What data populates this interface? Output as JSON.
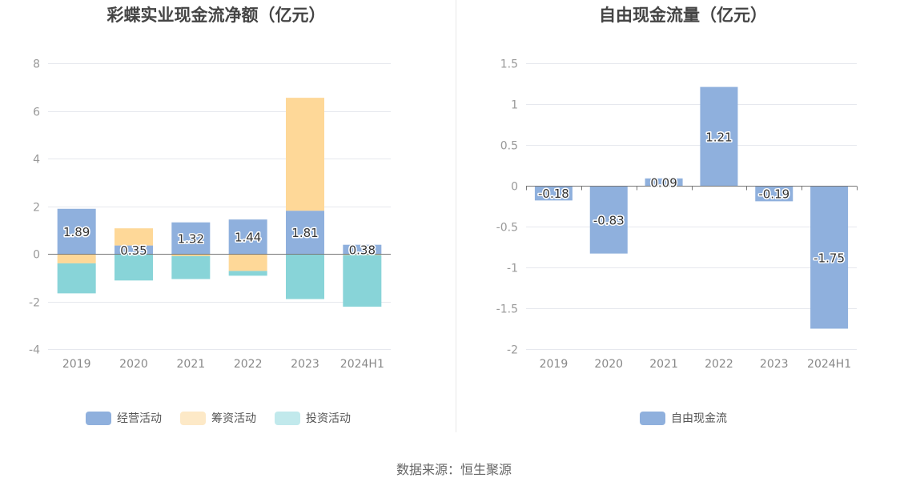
{
  "chart_data": [
    {
      "type": "bar",
      "stacked": true,
      "title": "彩蝶实业现金流净额（亿元）",
      "categories": [
        "2019",
        "2020",
        "2021",
        "2022",
        "2023",
        "2024H1"
      ],
      "ylim": [
        -4,
        8
      ],
      "yticks": [
        "8",
        "6",
        "4",
        "2",
        "0",
        "-2",
        "-4"
      ],
      "ytick_values": [
        8,
        6,
        4,
        2,
        0,
        -2,
        -4
      ],
      "series": [
        {
          "name": "经营活动",
          "color": "#8fb0dd",
          "legend_color": "#8fb0dd",
          "values": [
            1.89,
            0.35,
            1.32,
            1.44,
            1.81,
            0.38
          ],
          "labels": [
            "1.89",
            "0.35",
            "1.32",
            "1.44",
            "1.81",
            "0.38"
          ]
        },
        {
          "name": "筹资活动",
          "color": "#fed898",
          "legend_color": "#fde9c7",
          "values": [
            -0.4,
            0.72,
            -0.1,
            -0.72,
            4.74,
            -0.05
          ]
        },
        {
          "name": "投资活动",
          "color": "#88d4d8",
          "legend_color": "#c1e9ec",
          "values": [
            -1.26,
            -1.12,
            -0.96,
            -0.2,
            -1.9,
            -2.17
          ]
        }
      ],
      "legend": "bottom"
    },
    {
      "type": "bar",
      "title": "自由现金流量（亿元）",
      "categories": [
        "2019",
        "2020",
        "2021",
        "2022",
        "2023",
        "2024H1"
      ],
      "ylim": [
        -2,
        1.5
      ],
      "yticks": [
        "1.5",
        "1",
        "0.5",
        "0",
        "-0.5",
        "-1",
        "-1.5",
        "-2"
      ],
      "ytick_values": [
        1.5,
        1,
        0.5,
        0,
        -0.5,
        -1,
        -1.5,
        -2
      ],
      "series": [
        {
          "name": "自由现金流",
          "color": "#8fb0dd",
          "legend_color": "#8fb0dd",
          "values": [
            -0.18,
            -0.83,
            0.09,
            1.21,
            -0.19,
            -1.75
          ],
          "labels": [
            "-0.18",
            "-0.83",
            "0.09",
            "1.21",
            "-0.19",
            "-1.75"
          ]
        }
      ],
      "legend": "bottom"
    }
  ],
  "source": "数据来源：恒生聚源"
}
